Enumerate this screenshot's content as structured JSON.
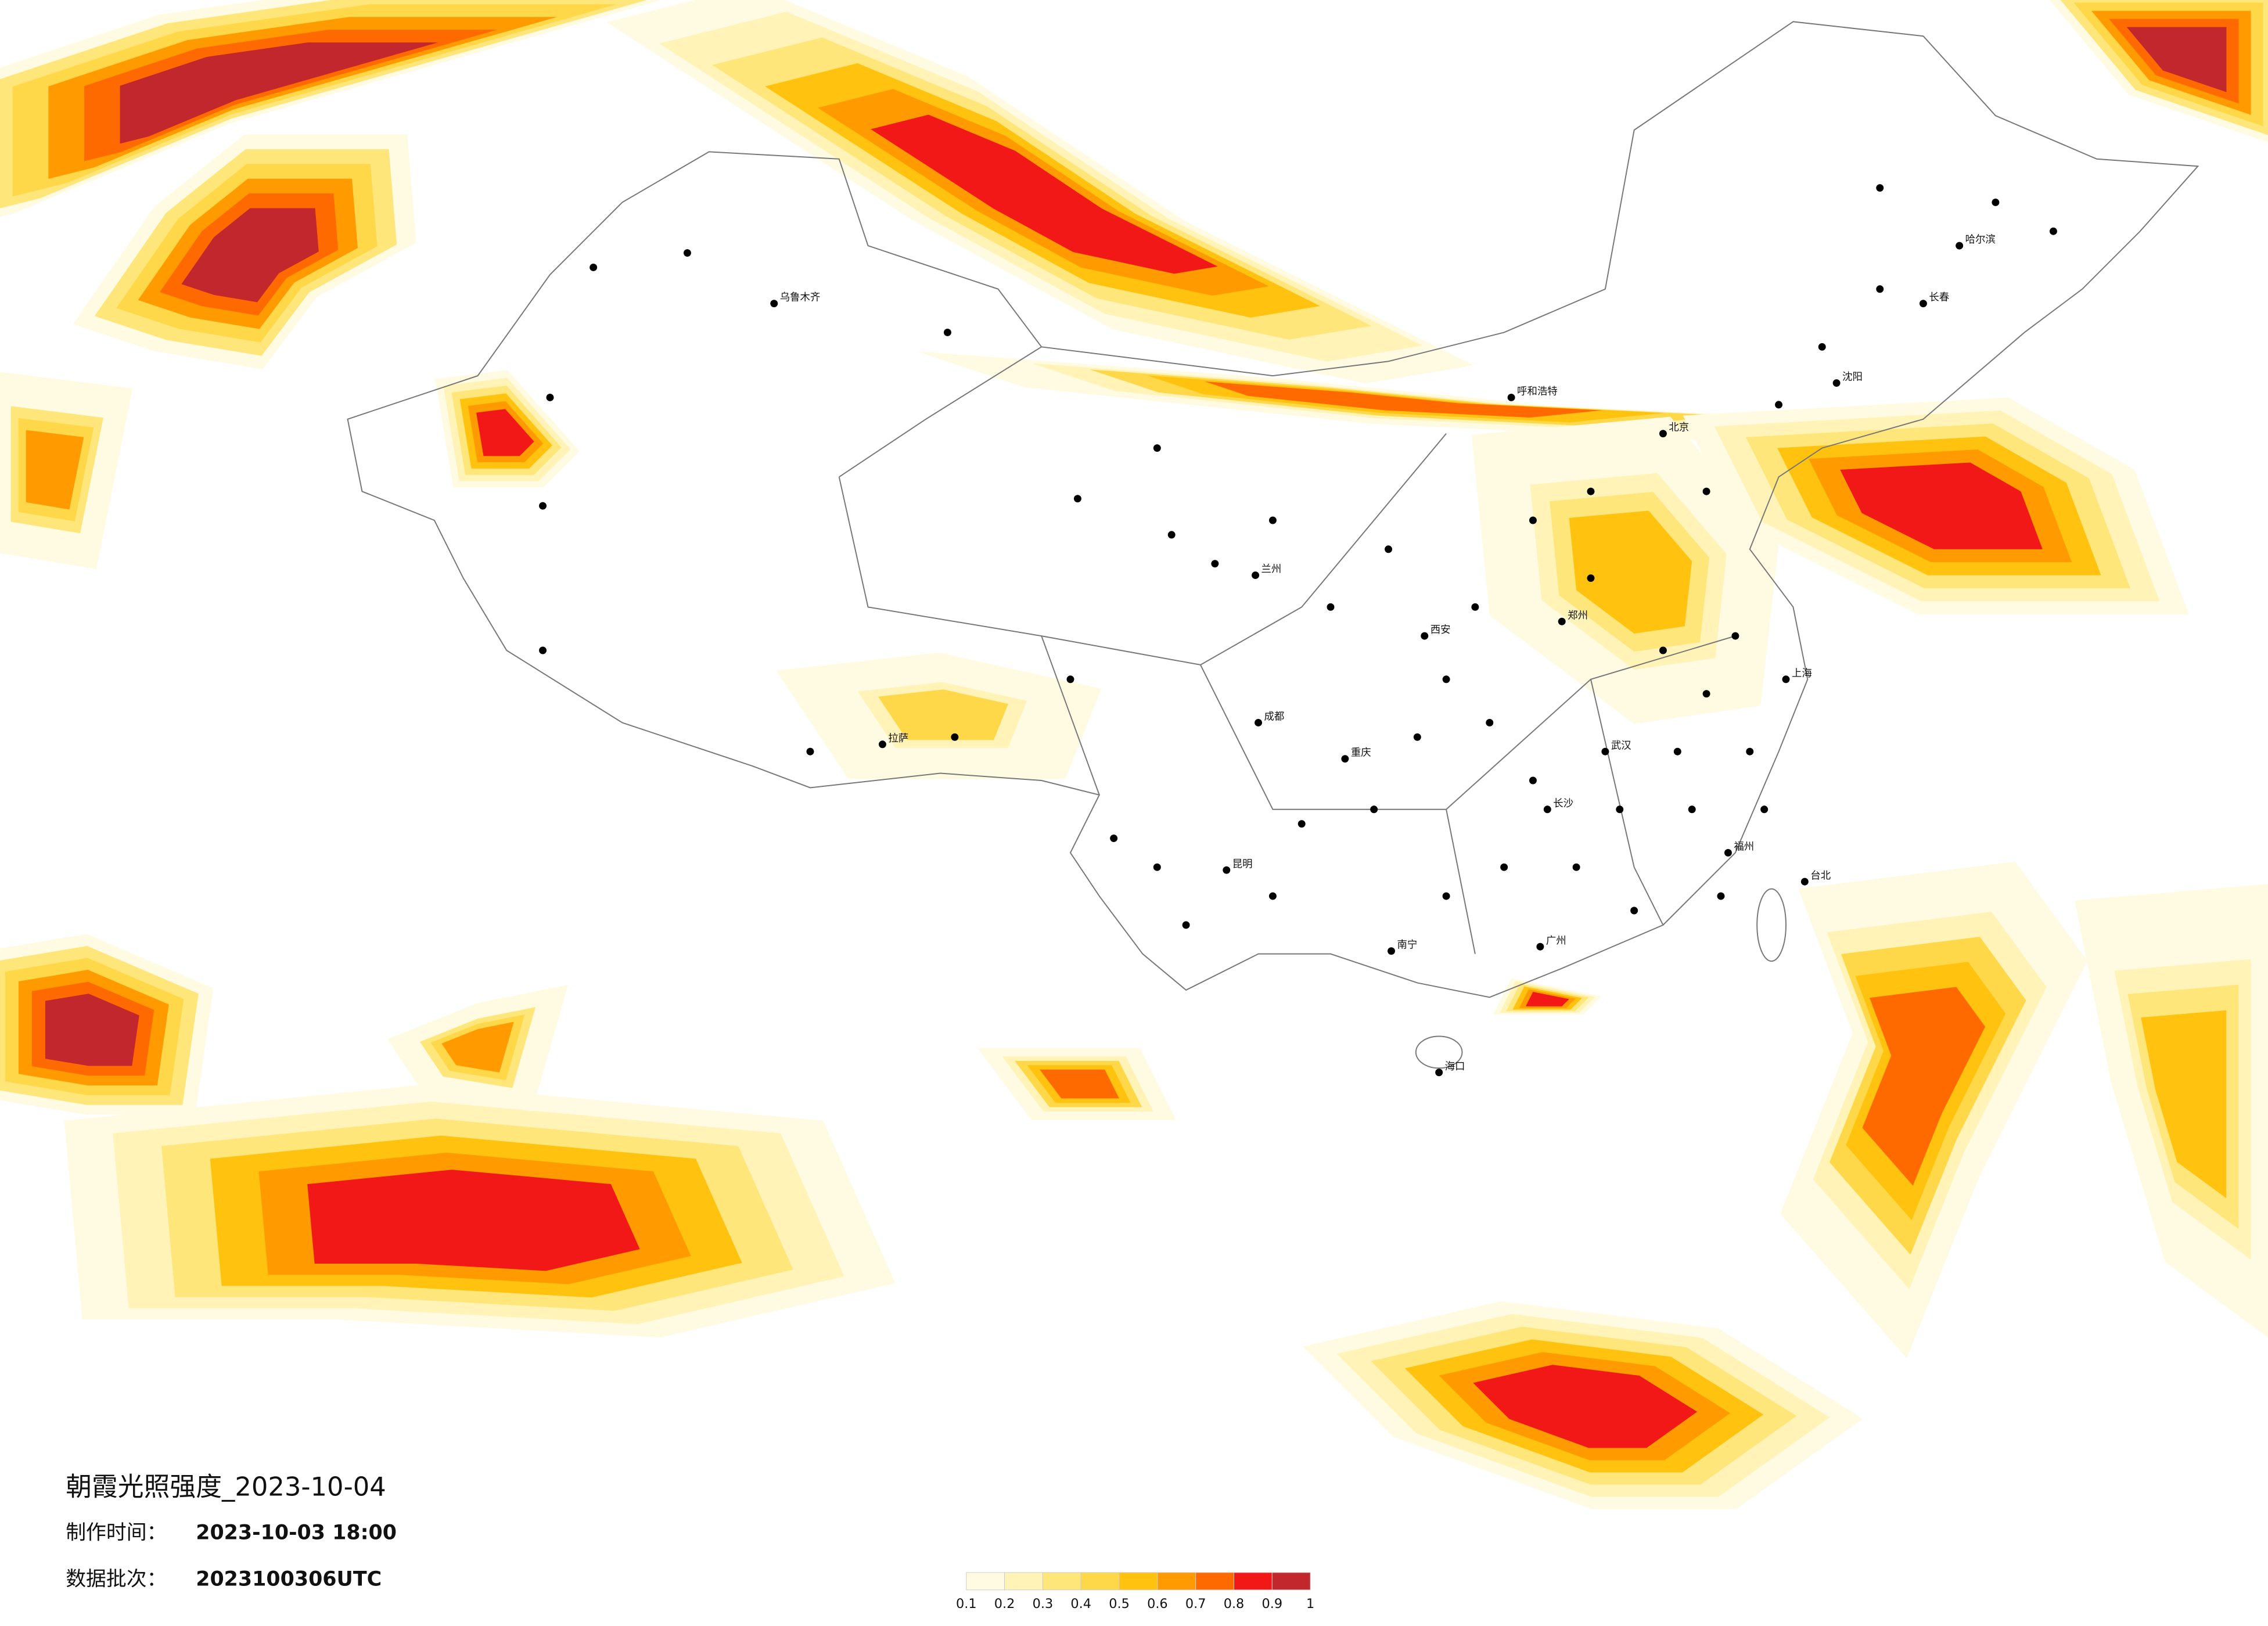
{
  "header": {
    "title": "朝霞光照强度_2023-10-04"
  },
  "meta": {
    "rows": [
      {
        "label": "制作时间：",
        "value": "2023-10-03 18:00"
      },
      {
        "label": "数据批次：",
        "value": "2023100306UTC"
      }
    ]
  },
  "legend": {
    "ticks": [
      0.1,
      0.2,
      0.3,
      0.4,
      0.5,
      0.6,
      0.7,
      0.8,
      0.9,
      1
    ],
    "colors": [
      "#fffbe3",
      "#fff3b8",
      "#ffe67a",
      "#ffd84a",
      "#ffc20e",
      "#ff9a00",
      "#ff6a00",
      "#f21818",
      "#c1272d"
    ]
  },
  "cities": [
    "乌鲁木齐",
    "拉萨",
    "成都",
    "重庆",
    "昆明",
    "兰州",
    "西安",
    "呼和浩特",
    "北京",
    "哈尔滨",
    "长春",
    "沈阳",
    "郑州",
    "武汉",
    "长沙",
    "南宁",
    "广州",
    "福州",
    "上海",
    "台北",
    "海口"
  ]
}
